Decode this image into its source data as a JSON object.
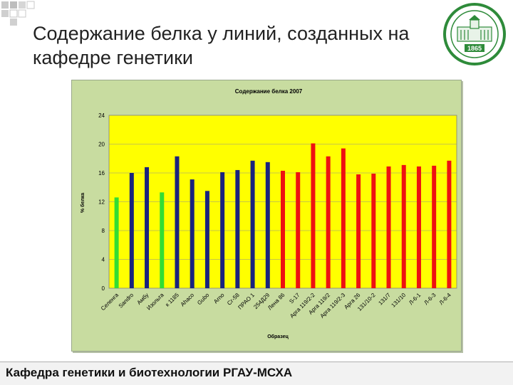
{
  "slide": {
    "title": "Содержание белка у линий, созданных на кафедре генетики",
    "footer": "Кафедра генетики и биотехнологии РГАУ-МСХА",
    "logo_year": "1865"
  },
  "colors": {
    "plot_background": "#ffff00",
    "chart_background": "#c8dca0",
    "green": "#33dd33",
    "blue": "#1a237e",
    "red": "#ee1111"
  },
  "chart_data": {
    "type": "bar",
    "title": "Содержание белка 2007",
    "xlabel": "Образец",
    "ylabel": "% белка",
    "ylim": [
      0,
      24
    ],
    "yticks": [
      0,
      4,
      8,
      12,
      16,
      20,
      24
    ],
    "grid": true,
    "legend": "none",
    "categories": [
      "Селенга",
      "Sandro",
      "Амбу",
      "Изольта",
      "к 1185",
      "Аhaco",
      "Gubo",
      "Arno",
      "Сг-58",
      "ПРАО 1",
      "254Д29",
      "Лена 86",
      "S-17",
      "Арга 119/2-2",
      "Арга 119/2",
      "Арга 119/2-3",
      "Арга 26",
      "131/10-2",
      "131/7",
      "131/10",
      "Л-6-1",
      "Л-6-3",
      "Л-6-4"
    ],
    "values": [
      12.6,
      16.0,
      16.8,
      13.3,
      18.3,
      15.1,
      13.5,
      16.1,
      16.4,
      17.7,
      17.5,
      16.3,
      16.1,
      20.1,
      18.3,
      19.4,
      15.8,
      15.9,
      16.9,
      17.1,
      16.9,
      17.0,
      17.7
    ],
    "bar_colors": [
      "green",
      "blue",
      "blue",
      "green",
      "blue",
      "blue",
      "blue",
      "blue",
      "blue",
      "blue",
      "blue",
      "red",
      "red",
      "red",
      "red",
      "red",
      "red",
      "red",
      "red",
      "red",
      "red",
      "red",
      "red"
    ]
  }
}
